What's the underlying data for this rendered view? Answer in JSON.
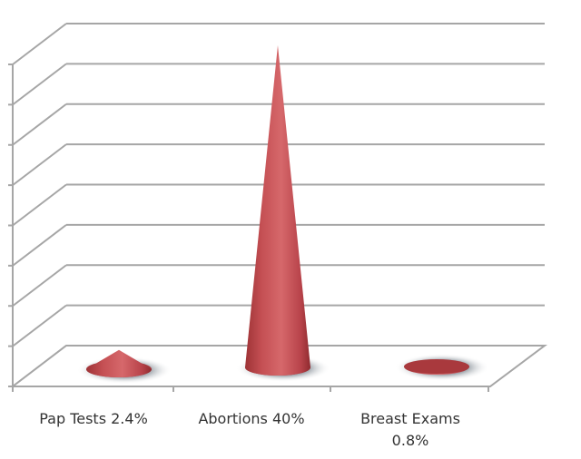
{
  "chart_data": {
    "type": "bar",
    "subtype": "3d-cone",
    "title": "",
    "xlabel": "",
    "ylabel": "",
    "categories": [
      "Pap Tests 2.4%",
      "Abortions 40%",
      "Breast Exams 0.8%"
    ],
    "category_lines": [
      [
        "Pap Tests 2.4%"
      ],
      [
        "Abortions 40%"
      ],
      [
        "Breast Exams",
        "0.8%"
      ]
    ],
    "values": [
      2.4,
      40,
      0.8
    ],
    "ylim": [
      0,
      42
    ],
    "gridlines": 9,
    "grid": true,
    "y_tick_labels_shown": false,
    "legend": "none"
  },
  "colors": {
    "cone": "#c8555a",
    "cone_dark": "#9e3336",
    "cone_light": "#e07a7c",
    "grid": "#a6a6a6",
    "shadow": "#b9bec4"
  }
}
